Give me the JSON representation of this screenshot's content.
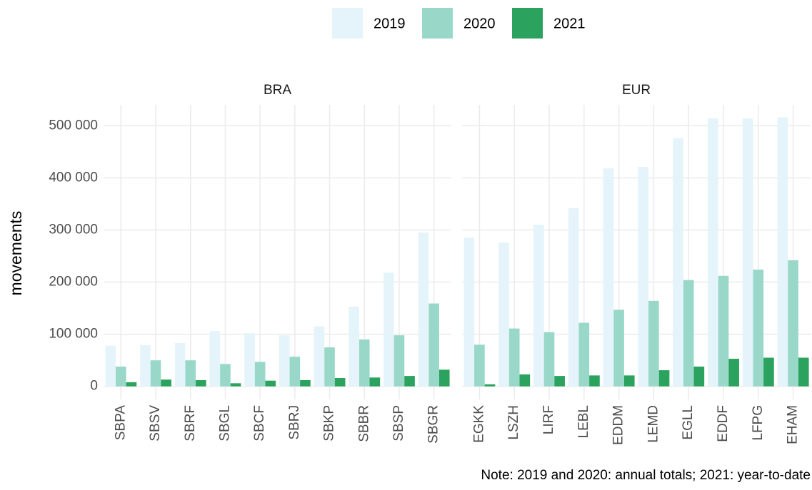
{
  "chart_data": [
    {
      "type": "bar",
      "title": "BRA",
      "y_label": "movements",
      "note": "Note: 2019 and 2020: annual totals; 2021: year-to-date",
      "categories": [
        "SBPA",
        "SBSV",
        "SBRF",
        "SBGL",
        "SBCF",
        "SBRJ",
        "SBKP",
        "SBBR",
        "SBSP",
        "SBGR"
      ],
      "series": [
        {
          "name": "2019",
          "color": "#e4f4fa",
          "values": [
            78000,
            79000,
            83000,
            106000,
            102000,
            98000,
            115000,
            153000,
            218000,
            295000
          ]
        },
        {
          "name": "2020",
          "color": "#99d8c9",
          "values": [
            38000,
            50000,
            50000,
            43000,
            47000,
            57000,
            75000,
            90000,
            98000,
            159000
          ]
        },
        {
          "name": "2021",
          "color": "#2ca25f",
          "values": [
            8000,
            13000,
            12000,
            6000,
            11000,
            12000,
            16000,
            17000,
            20000,
            32000
          ]
        }
      ],
      "ylim": [
        -25000,
        540000
      ],
      "yticks": [
        0,
        {
          "value": 100000,
          "label": "100 000"
        },
        {
          "value": 200000,
          "label": "200 000"
        },
        {
          "value": 300000,
          "label": "300 000"
        },
        {
          "value": 400000,
          "label": "400 000"
        },
        {
          "value": 500000,
          "label": "500 000"
        }
      ],
      "grid": true,
      "legend": "top"
    },
    {
      "type": "bar",
      "title": "EUR",
      "categories": [
        "EGKK",
        "LSZH",
        "LIRF",
        "LEBL",
        "EDDM",
        "LEMD",
        "EGLL",
        "EDDF",
        "LFPG",
        "EHAM"
      ],
      "series": [
        {
          "color": "#e4f4fa",
          "values": [
            285000,
            276000,
            310000,
            342000,
            418000,
            421000,
            476000,
            514000,
            514000,
            516000
          ]
        },
        {
          "color": "#99d8c9",
          "values": [
            80000,
            111000,
            104000,
            122000,
            147000,
            164000,
            204000,
            212000,
            224000,
            242000
          ]
        },
        {
          "color": "#2ca25f",
          "values": [
            4000,
            23000,
            20000,
            21000,
            21000,
            31000,
            38000,
            53000,
            55000,
            55000
          ]
        }
      ],
      "ylim": [
        -25000,
        540000
      ],
      "yticks": [
        0,
        100000,
        200000,
        300000,
        400000,
        500000
      ],
      "grid": true
    }
  ]
}
